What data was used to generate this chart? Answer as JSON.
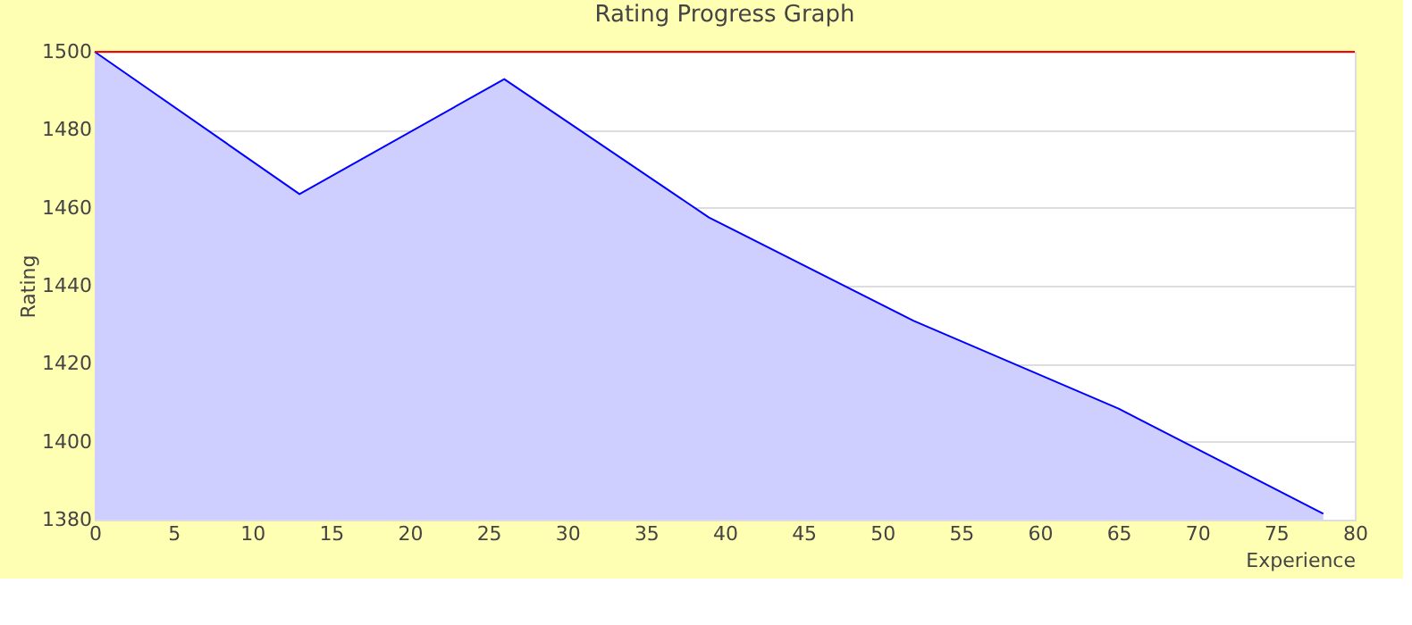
{
  "chart_data": {
    "type": "area",
    "title": "Rating Progress Graph",
    "xlabel": "Experience",
    "ylabel": "Rating",
    "x": [
      0,
      13,
      26,
      39,
      52,
      65,
      78
    ],
    "series": [
      {
        "color": "#0000ff",
        "values": [
          1500,
          1463.5,
          1493,
          1457.5,
          1431,
          1408.5,
          1381.5
        ]
      }
    ],
    "xlim": [
      0,
      80
    ],
    "xticks": [
      0,
      5,
      10,
      15,
      20,
      25,
      30,
      35,
      40,
      45,
      50,
      55,
      60,
      65,
      70,
      75,
      80
    ],
    "ylim": [
      1380,
      1500
    ],
    "yticks": [
      1380,
      1400,
      1420,
      1440,
      1460,
      1480,
      1500
    ],
    "grid": "y",
    "ref_lines": [
      {
        "axis": "y",
        "value": 1500,
        "color": "#ff0000"
      }
    ]
  }
}
